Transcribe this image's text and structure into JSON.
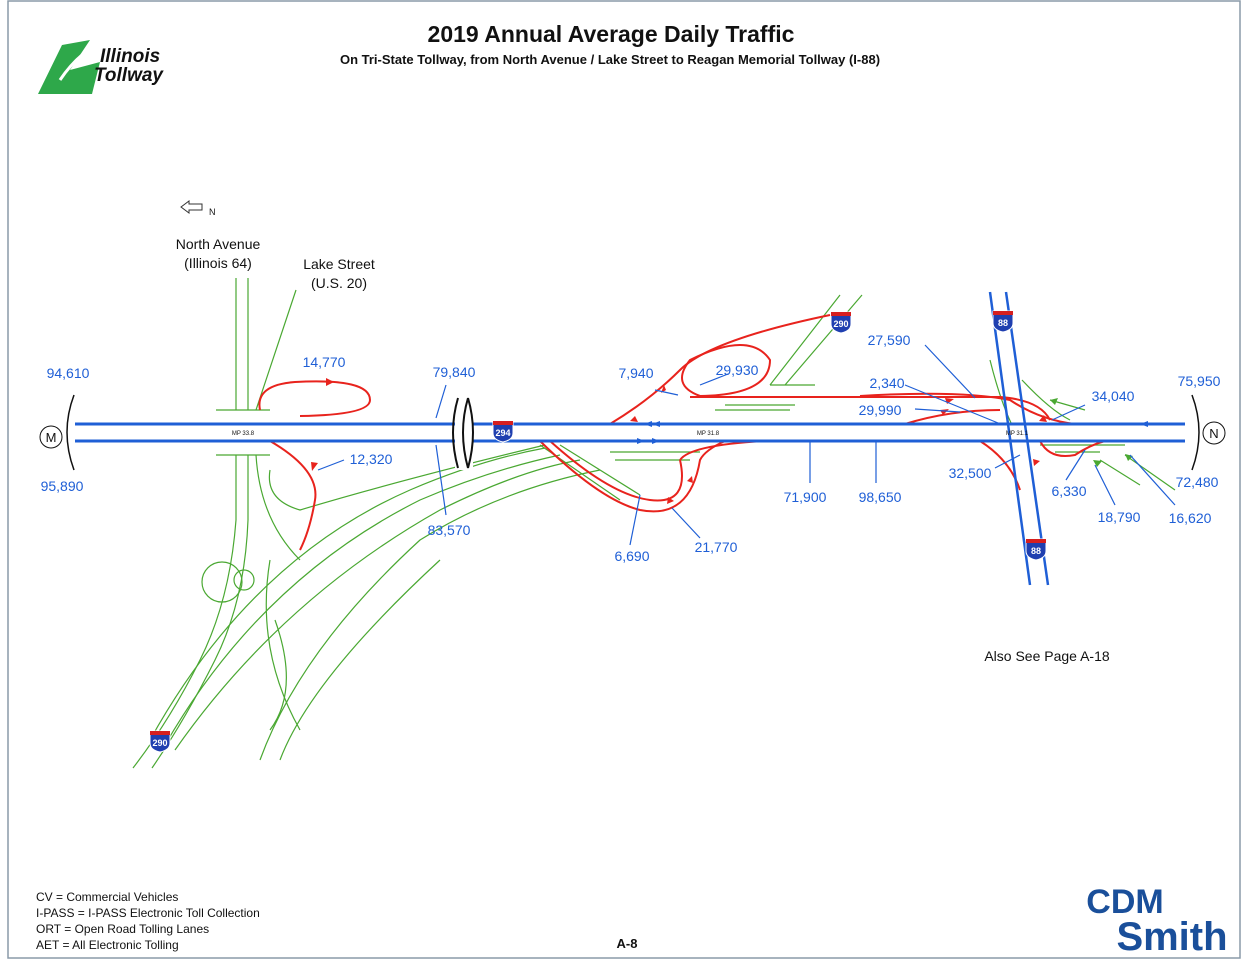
{
  "header": {
    "title": "2019 Annual Average Daily Traffic",
    "subtitle": "On Tri-State Tollway, from North Avenue / Lake Street to Reagan Memorial Tollway (I-88)",
    "logo": [
      "Illinois",
      "Tollway"
    ]
  },
  "north_arrow": "N",
  "roads": [
    "North Avenue",
    "(Illinois 64)",
    "Lake Street",
    "(U.S. 20)"
  ],
  "endpoints": [
    "M",
    "N"
  ],
  "mileposts": [
    "MP 33.8",
    "MP 31.8",
    "MP 31.1"
  ],
  "shields": [
    "290",
    "294",
    "290",
    "88",
    "88"
  ],
  "traffic_counts": [
    "94,610",
    "95,890",
    "14,770",
    "12,320",
    "79,840",
    "83,570",
    "7,940",
    "29,930",
    "6,690",
    "21,770",
    "71,900",
    "98,650",
    "27,590",
    "2,340",
    "29,990",
    "34,040",
    "32,500",
    "6,330",
    "18,790",
    "16,620",
    "75,950",
    "72,480"
  ],
  "note": "Also See Page A-18",
  "legend": [
    "CV = Commercial Vehicles",
    "I-PASS = I-PASS Electronic Toll Collection",
    "ORT = Open Road Tolling Lanes",
    "AET = All Electronic Tolling"
  ],
  "page_number": "A-8",
  "company_logo": [
    "CDM",
    "Smith"
  ]
}
